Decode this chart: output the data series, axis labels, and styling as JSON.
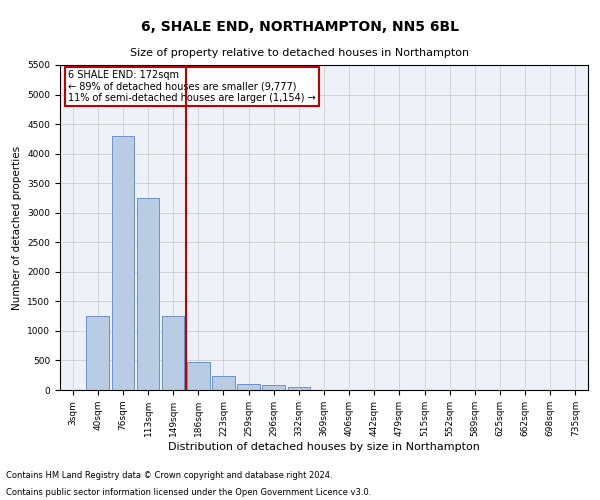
{
  "title": "6, SHALE END, NORTHAMPTON, NN5 6BL",
  "subtitle": "Size of property relative to detached houses in Northampton",
  "xlabel": "Distribution of detached houses by size in Northampton",
  "ylabel": "Number of detached properties",
  "footnote1": "Contains HM Land Registry data © Crown copyright and database right 2024.",
  "footnote2": "Contains public sector information licensed under the Open Government Licence v3.0.",
  "categories": [
    "3sqm",
    "40sqm",
    "76sqm",
    "113sqm",
    "149sqm",
    "186sqm",
    "223sqm",
    "259sqm",
    "296sqm",
    "332sqm",
    "369sqm",
    "406sqm",
    "442sqm",
    "479sqm",
    "515sqm",
    "552sqm",
    "589sqm",
    "625sqm",
    "662sqm",
    "698sqm",
    "735sqm"
  ],
  "bar_values": [
    0,
    1250,
    4300,
    3250,
    1250,
    480,
    230,
    100,
    80,
    55,
    0,
    0,
    0,
    0,
    0,
    0,
    0,
    0,
    0,
    0,
    0
  ],
  "bar_color": "#b8cce4",
  "bar_edge_color": "#4472c4",
  "vline_x_index": 5,
  "vline_color": "#c00000",
  "annotation_line1": "6 SHALE END: 172sqm",
  "annotation_line2": "← 89% of detached houses are smaller (9,777)",
  "annotation_line3": "11% of semi-detached houses are larger (1,154) →",
  "annotation_box_edge_color": "#c00000",
  "ylim": [
    0,
    5500
  ],
  "yticks": [
    0,
    500,
    1000,
    1500,
    2000,
    2500,
    3000,
    3500,
    4000,
    4500,
    5000,
    5500
  ],
  "title_fontsize": 10,
  "subtitle_fontsize": 8,
  "xlabel_fontsize": 8,
  "ylabel_fontsize": 7.5,
  "tick_fontsize": 6.5,
  "annotation_fontsize": 7,
  "footnote_fontsize": 6
}
